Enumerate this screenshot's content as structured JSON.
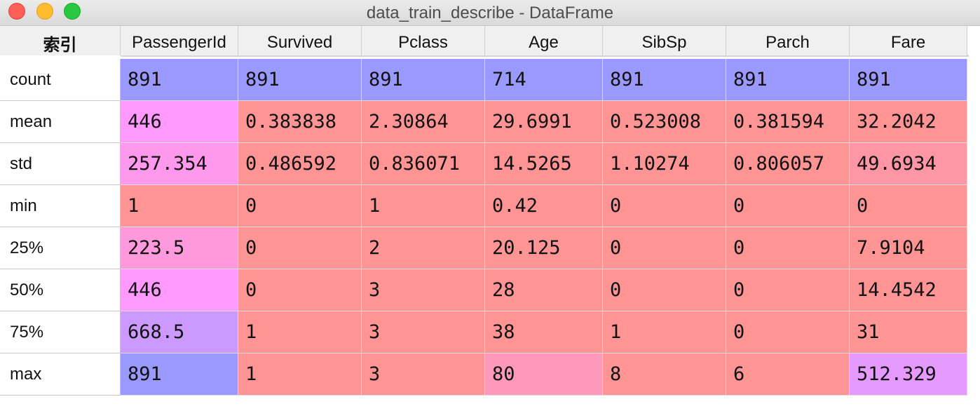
{
  "window": {
    "title": "data_train_describe - DataFrame"
  },
  "table": {
    "index_header": "索引",
    "columns": [
      "PassengerId",
      "Survived",
      "Pclass",
      "Age",
      "SibSp",
      "Parch",
      "Fare"
    ],
    "rows": [
      {
        "label": "count",
        "values": [
          "891",
          "891",
          "891",
          "714",
          "891",
          "891",
          "891"
        ],
        "colors": [
          "#9999ff",
          "#9999ff",
          "#9999ff",
          "#9999ff",
          "#9999ff",
          "#9999ff",
          "#9999ff"
        ]
      },
      {
        "label": "mean",
        "values": [
          "446",
          "0.383838",
          "2.30864",
          "29.6991",
          "0.523008",
          "0.381594",
          "32.2042"
        ],
        "colors": [
          "#ff99ff",
          "#ff9494",
          "#ff9494",
          "#ff9494",
          "#ff9494",
          "#ff9494",
          "#ff9494"
        ]
      },
      {
        "label": "std",
        "values": [
          "257.354",
          "0.486592",
          "0.836071",
          "14.5265",
          "1.10274",
          "0.806057",
          "49.6934"
        ],
        "colors": [
          "#ff99ee",
          "#ff9494",
          "#ff9494",
          "#ff9494",
          "#ff9494",
          "#ff9494",
          "#ff96a6"
        ]
      },
      {
        "label": "min",
        "values": [
          "1",
          "0",
          "1",
          "0.42",
          "0",
          "0",
          "0"
        ],
        "colors": [
          "#ff9494",
          "#ff9494",
          "#ff9494",
          "#ff9494",
          "#ff9494",
          "#ff9494",
          "#ff9494"
        ]
      },
      {
        "label": "25%",
        "values": [
          "223.5",
          "0",
          "2",
          "20.125",
          "0",
          "0",
          "7.9104"
        ],
        "colors": [
          "#ff99dd",
          "#ff9494",
          "#ff9494",
          "#ff9494",
          "#ff9494",
          "#ff9494",
          "#ff9494"
        ]
      },
      {
        "label": "50%",
        "values": [
          "446",
          "0",
          "3",
          "28",
          "0",
          "0",
          "14.4542"
        ],
        "colors": [
          "#ff99ff",
          "#ff9494",
          "#ff9494",
          "#ff9494",
          "#ff9494",
          "#ff9494",
          "#ff9494"
        ]
      },
      {
        "label": "75%",
        "values": [
          "668.5",
          "1",
          "3",
          "38",
          "1",
          "0",
          "31"
        ],
        "colors": [
          "#cc99ff",
          "#ff9494",
          "#ff9494",
          "#ff9494",
          "#ff9494",
          "#ff9494",
          "#ff9494"
        ]
      },
      {
        "label": "max",
        "values": [
          "891",
          "1",
          "3",
          "80",
          "8",
          "6",
          "512.329"
        ],
        "colors": [
          "#9999ff",
          "#ff9494",
          "#ff9494",
          "#ff99bb",
          "#ff9494",
          "#ff9494",
          "#e699ff"
        ]
      }
    ]
  }
}
